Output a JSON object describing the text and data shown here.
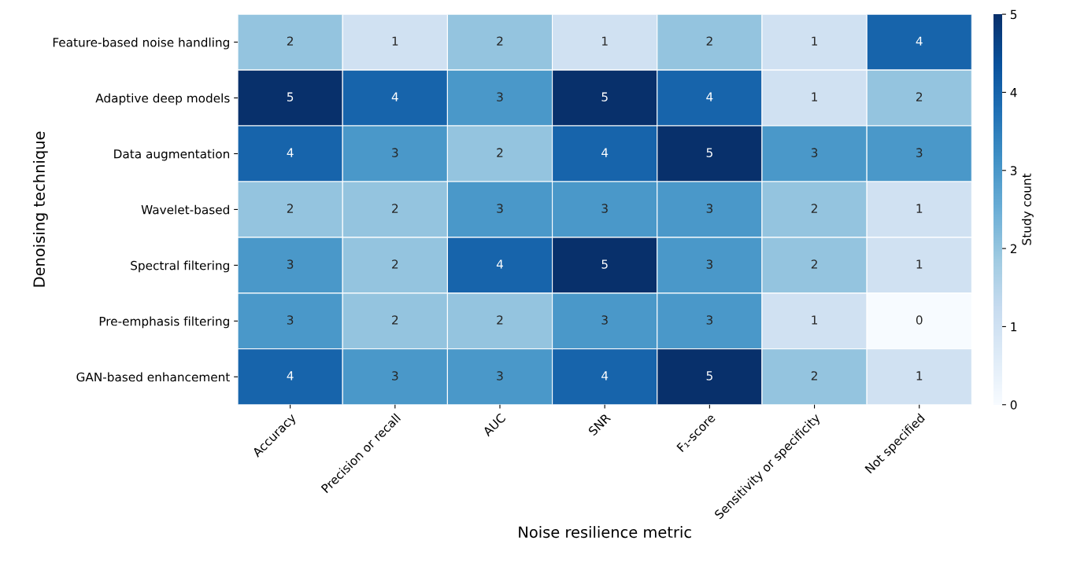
{
  "chart_data": {
    "type": "heatmap",
    "xlabel": "Noise resilience metric",
    "ylabel": "Denoising technique",
    "clabel": "Study count",
    "categories": [
      "Accuracy",
      "Precision or recall",
      "AUC",
      "SNR",
      "F₁-score",
      "Sensitivity or specificity",
      "Not specified"
    ],
    "y_categories": [
      "Feature-based noise handling",
      "Adaptive deep models",
      "Data augmentation",
      "Wavelet-based",
      "Spectral filtering",
      "Pre-emphasis filtering",
      "GAN-based enhancement"
    ],
    "cells": [
      [
        2,
        1,
        2,
        1,
        2,
        1,
        4
      ],
      [
        5,
        4,
        3,
        5,
        4,
        1,
        2
      ],
      [
        4,
        3,
        2,
        4,
        5,
        3,
        3
      ],
      [
        2,
        2,
        3,
        3,
        3,
        2,
        1
      ],
      [
        3,
        2,
        4,
        5,
        3,
        2,
        1
      ],
      [
        3,
        2,
        2,
        3,
        3,
        1,
        0
      ],
      [
        4,
        3,
        3,
        4,
        5,
        2,
        1
      ]
    ],
    "clim": [
      0,
      5
    ],
    "cticks": [
      0,
      1,
      2,
      3,
      4,
      5
    ],
    "data_labels": true
  }
}
